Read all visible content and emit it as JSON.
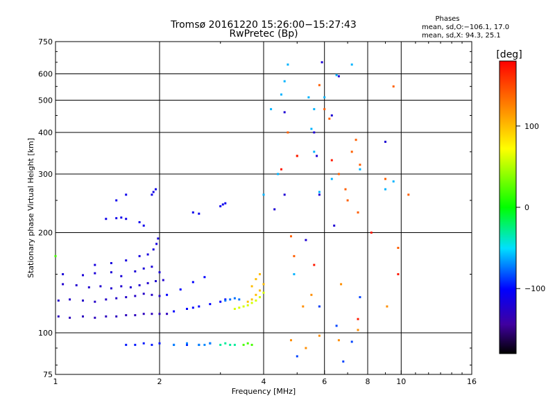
{
  "chart_data": {
    "type": "scatter",
    "title": "Tromsø 20161220 15:26:00−15:27:43",
    "subtitle": "RwPretec (Bp)",
    "info": {
      "heading": "Phases",
      "line1": "mean, sd,O:−106.1, 17.0",
      "line2": "mean, sd,X:  94.3, 25.1"
    },
    "xlabel": "Frequency [MHz]",
    "ylabel": "Stationary phase Virtual Height [km]",
    "x_scale": "log",
    "y_scale": "log",
    "xlim": [
      1,
      16
    ],
    "ylim": [
      75,
      750
    ],
    "x_ticks": [
      {
        "value": 1,
        "label": "1"
      },
      {
        "value": 2,
        "label": "2"
      },
      {
        "value": 4,
        "label": "4"
      },
      {
        "value": 6,
        "label": "6"
      },
      {
        "value": 8,
        "label": "8"
      },
      {
        "value": 10,
        "label": "10"
      },
      {
        "value": 16,
        "label": "16"
      }
    ],
    "x_gridlines": [
      2,
      4,
      6,
      8,
      10
    ],
    "y_ticks": [
      {
        "value": 75,
        "label": "75"
      },
      {
        "value": 100,
        "label": "100"
      },
      {
        "value": 200,
        "label": "200"
      },
      {
        "value": 300,
        "label": "300"
      },
      {
        "value": 400,
        "label": "400"
      },
      {
        "value": 500,
        "label": "500"
      },
      {
        "value": 600,
        "label": "600"
      },
      {
        "value": 750,
        "label": "750"
      }
    ],
    "y_gridlines": [
      100,
      200,
      300,
      400,
      500,
      600
    ],
    "colorbar": {
      "label": "[deg]",
      "range": [
        -180,
        180
      ],
      "ticks": [
        {
          "value": 100,
          "label": "100"
        },
        {
          "value": 0,
          "label": "0"
        },
        {
          "value": -100,
          "label": "−100"
        }
      ]
    },
    "series": [
      {
        "phase": -130,
        "points": [
          [
            1.02,
            112
          ],
          [
            1.1,
            111
          ],
          [
            1.2,
            112
          ],
          [
            1.3,
            111
          ],
          [
            1.4,
            112
          ],
          [
            1.5,
            112
          ],
          [
            1.6,
            113
          ],
          [
            1.7,
            113
          ],
          [
            1.8,
            114
          ],
          [
            1.9,
            114
          ],
          [
            2.0,
            114
          ],
          [
            2.1,
            114
          ]
        ]
      },
      {
        "phase": -125,
        "points": [
          [
            1.02,
            125
          ],
          [
            1.1,
            126
          ],
          [
            1.2,
            125
          ],
          [
            1.3,
            124
          ],
          [
            1.4,
            126
          ],
          [
            1.5,
            127
          ],
          [
            1.6,
            128
          ],
          [
            1.7,
            129
          ],
          [
            1.8,
            131
          ],
          [
            1.9,
            130
          ],
          [
            2.0,
            129
          ]
        ]
      },
      {
        "phase": -122,
        "points": [
          [
            1.05,
            140
          ],
          [
            1.15,
            139
          ],
          [
            1.25,
            137
          ],
          [
            1.35,
            138
          ],
          [
            1.45,
            136
          ],
          [
            1.55,
            138
          ],
          [
            1.65,
            137
          ],
          [
            1.75,
            139
          ],
          [
            1.85,
            141
          ],
          [
            1.95,
            143
          ],
          [
            2.05,
            144
          ]
        ]
      },
      {
        "phase": -118,
        "points": [
          [
            1.05,
            150
          ],
          [
            1.2,
            149
          ],
          [
            1.3,
            151
          ],
          [
            1.45,
            152
          ],
          [
            1.55,
            148
          ],
          [
            1.7,
            153
          ],
          [
            1.8,
            156
          ],
          [
            1.9,
            158
          ],
          [
            2.0,
            152
          ]
        ]
      },
      {
        "phase": -115,
        "points": [
          [
            1.3,
            160
          ],
          [
            1.45,
            162
          ],
          [
            1.6,
            165
          ],
          [
            1.75,
            170
          ],
          [
            1.85,
            172
          ],
          [
            1.92,
            178
          ],
          [
            1.96,
            185
          ],
          [
            1.98,
            192
          ]
        ]
      },
      {
        "phase": -110,
        "points": [
          [
            1.4,
            220
          ],
          [
            1.5,
            221
          ],
          [
            1.55,
            222
          ],
          [
            1.6,
            220
          ],
          [
            1.9,
            260
          ],
          [
            1.92,
            265
          ],
          [
            1.95,
            270
          ]
        ]
      },
      {
        "phase": -108,
        "points": [
          [
            1.5,
            250
          ],
          [
            1.6,
            260
          ],
          [
            1.75,
            215
          ],
          [
            1.8,
            210
          ],
          [
            2.5,
            230
          ],
          [
            2.6,
            228
          ],
          [
            3.0,
            240
          ],
          [
            3.05,
            243
          ],
          [
            3.1,
            245
          ]
        ]
      },
      {
        "phase": -100,
        "points": [
          [
            2.2,
            116
          ],
          [
            2.4,
            118
          ],
          [
            2.5,
            119
          ],
          [
            2.6,
            120
          ],
          [
            2.8,
            122
          ],
          [
            3.0,
            124
          ],
          [
            3.1,
            126
          ],
          [
            2.1,
            130
          ],
          [
            2.3,
            135
          ],
          [
            2.5,
            142
          ],
          [
            2.7,
            147
          ]
        ]
      },
      {
        "phase": -95,
        "points": [
          [
            1.6,
            92
          ],
          [
            1.7,
            92
          ],
          [
            1.8,
            93
          ],
          [
            1.9,
            92
          ],
          [
            2.0,
            93
          ],
          [
            2.2,
            92
          ],
          [
            2.4,
            92
          ],
          [
            2.6,
            92
          ],
          [
            2.8,
            93
          ]
        ]
      },
      {
        "phase": -75,
        "points": [
          [
            3.1,
            125
          ],
          [
            3.2,
            126
          ],
          [
            3.3,
            127
          ],
          [
            3.4,
            126
          ]
        ]
      },
      {
        "phase": -70,
        "points": [
          [
            2.2,
            92
          ],
          [
            2.4,
            93
          ],
          [
            2.6,
            92
          ],
          [
            2.7,
            92
          ],
          [
            2.8,
            93
          ]
        ]
      },
      {
        "phase": -30,
        "points": [
          [
            3.0,
            92
          ],
          [
            3.1,
            93
          ],
          [
            3.2,
            92
          ],
          [
            3.3,
            92
          ]
        ]
      },
      {
        "phase": 20,
        "points": [
          [
            3.5,
            92
          ],
          [
            3.6,
            93
          ],
          [
            3.7,
            92
          ],
          [
            1.0,
            170
          ]
        ]
      },
      {
        "phase": 60,
        "points": [
          [
            3.3,
            118
          ],
          [
            3.4,
            119
          ],
          [
            3.5,
            120
          ],
          [
            3.6,
            121
          ],
          [
            3.7,
            123
          ],
          [
            3.8,
            125
          ],
          [
            3.9,
            128
          ],
          [
            4.0,
            132
          ]
        ]
      },
      {
        "phase": 100,
        "points": [
          [
            3.6,
            124
          ],
          [
            3.7,
            126
          ],
          [
            3.8,
            130
          ],
          [
            3.9,
            134
          ],
          [
            4.0,
            140
          ],
          [
            3.7,
            138
          ],
          [
            3.8,
            145
          ],
          [
            3.9,
            150
          ]
        ]
      },
      {
        "phase": 140,
        "points": [
          [
            4.7,
            400
          ],
          [
            5.0,
            340
          ],
          [
            4.8,
            195
          ],
          [
            4.9,
            170
          ],
          [
            5.8,
            555
          ],
          [
            6.0,
            470
          ],
          [
            6.2,
            440
          ],
          [
            6.6,
            300
          ],
          [
            6.9,
            270
          ],
          [
            7.2,
            350
          ],
          [
            7.4,
            380
          ],
          [
            7.0,
            250
          ],
          [
            7.6,
            320
          ],
          [
            7.5,
            230
          ],
          [
            9.5,
            550
          ],
          [
            9.8,
            180
          ],
          [
            10.5,
            260
          ],
          [
            9.0,
            290
          ]
        ]
      },
      {
        "phase": 170,
        "points": [
          [
            4.5,
            310
          ],
          [
            5.0,
            340
          ],
          [
            5.6,
            160
          ],
          [
            5.8,
            120
          ],
          [
            7.5,
            110
          ],
          [
            8.2,
            200
          ],
          [
            9.8,
            150
          ],
          [
            6.3,
            330
          ]
        ]
      },
      {
        "phase": -60,
        "points": [
          [
            4.2,
            470
          ],
          [
            4.5,
            520
          ],
          [
            4.6,
            570
          ],
          [
            5.4,
            510
          ],
          [
            5.6,
            470
          ],
          [
            6.5,
            595
          ],
          [
            7.2,
            640
          ],
          [
            4.7,
            640
          ],
          [
            4.4,
            300
          ],
          [
            4.0,
            260
          ],
          [
            4.9,
            150
          ],
          [
            5.8,
            265
          ],
          [
            6.3,
            290
          ],
          [
            7.6,
            310
          ],
          [
            9.0,
            270
          ],
          [
            9.5,
            285
          ],
          [
            6.0,
            510
          ],
          [
            5.5,
            410
          ],
          [
            5.6,
            350
          ]
        ]
      },
      {
        "phase": -120,
        "points": [
          [
            4.6,
            460
          ],
          [
            5.6,
            400
          ],
          [
            5.7,
            340
          ],
          [
            4.6,
            260
          ],
          [
            4.3,
            235
          ],
          [
            5.3,
            190
          ],
          [
            6.4,
            210
          ],
          [
            6.6,
            590
          ],
          [
            5.9,
            650
          ],
          [
            6.3,
            450
          ],
          [
            9.0,
            375
          ],
          [
            5.8,
            260
          ]
        ]
      },
      {
        "phase": 120,
        "points": [
          [
            4.8,
            95
          ],
          [
            5.3,
            90
          ],
          [
            5.8,
            98
          ],
          [
            6.6,
            95
          ],
          [
            7.5,
            102
          ],
          [
            5.2,
            120
          ],
          [
            5.5,
            130
          ],
          [
            6.7,
            140
          ],
          [
            9.1,
            120
          ]
        ]
      },
      {
        "phase": -85,
        "points": [
          [
            5.0,
            85
          ],
          [
            6.8,
            82
          ],
          [
            7.2,
            94
          ],
          [
            6.5,
            105
          ],
          [
            5.8,
            120
          ],
          [
            7.6,
            128
          ]
        ]
      }
    ]
  }
}
